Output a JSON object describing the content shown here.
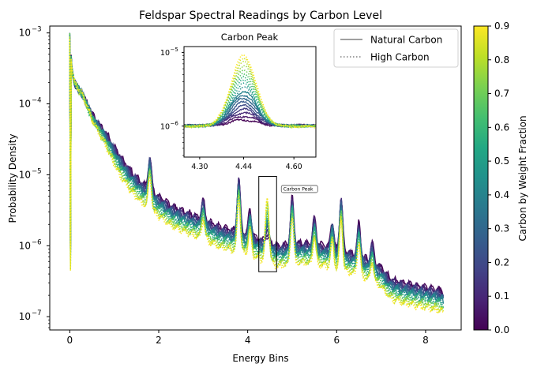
{
  "chart_data": {
    "type": "line",
    "title": "Feldspar Spectral Readings by Carbon Level",
    "xlabel": "Energy Bins",
    "ylabel": "Probability Density",
    "xlim": [
      -0.45,
      8.8
    ],
    "ylim": [
      6.5e-08,
      0.00125
    ],
    "yscale": "log",
    "x_ticks": [
      0,
      2,
      4,
      6,
      8
    ],
    "y_ticks": [
      1e-07,
      1e-06,
      1e-05,
      0.0001,
      0.001
    ],
    "grid": false,
    "legend": {
      "placement": "top-right",
      "entries": [
        {
          "label": "Natural Carbon",
          "style": "solid",
          "color": "#808080"
        },
        {
          "label": "High Carbon",
          "style": "dotted",
          "color": "#808080"
        }
      ]
    },
    "colorbar": {
      "label": "Carbon by Weight Fraction",
      "colormap": "viridis",
      "range": [
        0.0,
        0.9
      ],
      "ticks": [
        "0.0",
        "0.1",
        "0.2",
        "0.3",
        "0.4",
        "0.5",
        "0.6",
        "0.7",
        "0.8",
        "0.9"
      ]
    },
    "x_range": [
      0.0,
      8.4
    ],
    "series_fractions": [
      0.0,
      0.05,
      0.1,
      0.15,
      0.2,
      0.25,
      0.3,
      0.35,
      0.4,
      0.45,
      0.5,
      0.55,
      0.6,
      0.65,
      0.7,
      0.75,
      0.8,
      0.85,
      0.9
    ],
    "high_carbon_threshold": 0.45,
    "baseline": [
      [
        0.0,
        0.0009
      ],
      [
        0.05,
        0.0003
      ],
      [
        0.1,
        0.0002
      ],
      [
        0.3,
        0.00013
      ],
      [
        0.5,
        7e-05
      ],
      [
        0.8,
        4e-05
      ],
      [
        1.0,
        2.5e-05
      ],
      [
        1.3,
        1.3e-05
      ],
      [
        1.6,
        8e-06
      ],
      [
        2.0,
        5e-06
      ],
      [
        2.3,
        3.6e-06
      ],
      [
        2.6,
        3e-06
      ],
      [
        3.0,
        2.4e-06
      ],
      [
        3.4,
        1.8e-06
      ],
      [
        3.8,
        1.6e-06
      ],
      [
        4.2,
        1.3e-06
      ],
      [
        4.44,
        1.15e-06
      ],
      [
        4.7,
        1e-06
      ],
      [
        5.2,
        1.1e-06
      ],
      [
        5.6,
        1.05e-06
      ],
      [
        6.0,
        9e-07
      ],
      [
        6.5,
        7.5e-07
      ],
      [
        7.0,
        5e-07
      ],
      [
        7.2,
        3.5e-07
      ],
      [
        7.5,
        3e-07
      ],
      [
        8.0,
        2.6e-07
      ],
      [
        8.3,
        2.4e-07
      ],
      [
        8.4,
        2.2e-07
      ]
    ],
    "dip": {
      "x": 0.0,
      "value": 6e-07
    },
    "peaks": [
      [
        0.55,
        2.6e-05
      ],
      [
        1.35,
        9e-06
      ],
      [
        1.8,
        1.8e-05
      ],
      [
        2.1,
        4.5e-06
      ],
      [
        3.0,
        4.5e-06
      ],
      [
        3.8,
        9e-06
      ],
      [
        4.05,
        3.2e-06
      ],
      [
        4.44,
        8.9e-06
      ],
      [
        5.0,
        4.8e-06
      ],
      [
        5.5,
        2.5e-06
      ],
      [
        5.9,
        2.2e-06
      ],
      [
        6.1,
        4.7e-06
      ],
      [
        6.5,
        2.1e-06
      ],
      [
        6.8,
        1.1e-06
      ]
    ],
    "annotation": {
      "text": "Carbon Peak",
      "x_range": [
        4.25,
        4.65
      ],
      "y_range": [
        4.3e-07,
        9.5e-06
      ]
    },
    "inset": {
      "title": "Carbon Peak",
      "xlim": [
        4.25,
        4.67
      ],
      "ylim": [
        3.8e-07,
        1.2e-05
      ],
      "yscale": "log",
      "x_ticks": [
        "4.30",
        "4.44",
        "4.60"
      ],
      "y_ticks": [
        1e-06,
        1e-05
      ],
      "peak_x": 4.44,
      "peak_max": 8.9e-06,
      "base_value": 1.02e-06
    }
  }
}
